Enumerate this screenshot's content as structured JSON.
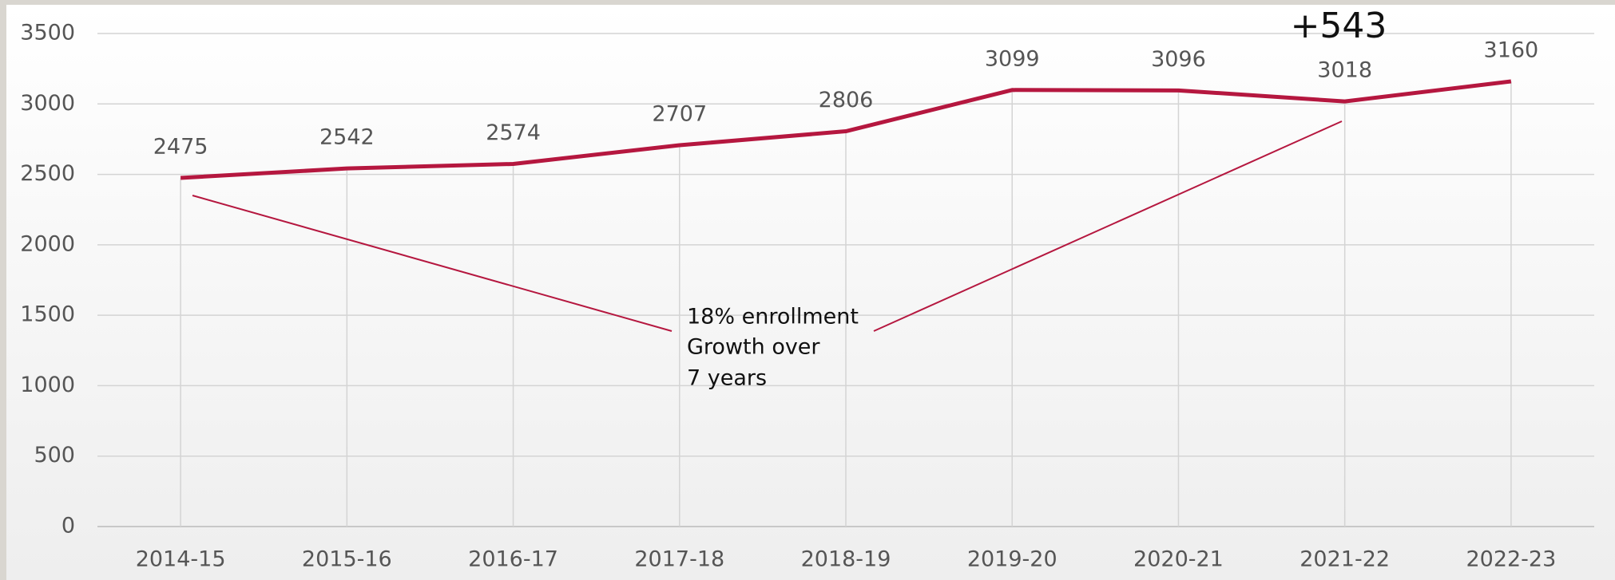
{
  "chart_data": {
    "type": "line",
    "categories": [
      "2014-15",
      "2015-16",
      "2016-17",
      "2017-18",
      "2018-19",
      "2019-20",
      "2020-21",
      "2021-22",
      "2022-23"
    ],
    "series": [
      {
        "name": "Enrollment",
        "color": "#b5173f",
        "values": [
          2475,
          2542,
          2574,
          2707,
          2806,
          3099,
          3096,
          3018,
          3160
        ]
      }
    ],
    "ylim": [
      0,
      3500
    ],
    "yticks": [
      0,
      500,
      1000,
      1500,
      2000,
      2500,
      3000,
      3500
    ],
    "grid": true,
    "annotations": [
      "+543",
      "18% enrollment",
      "Growth over",
      "7 years"
    ]
  }
}
